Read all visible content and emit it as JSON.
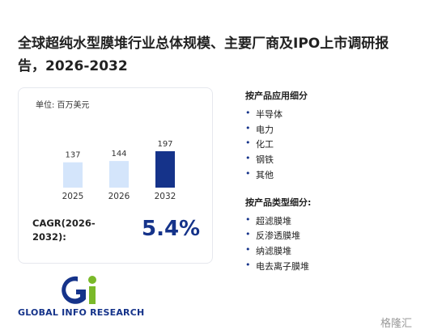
{
  "title": "全球超纯水型膜堆行业总体规模、主要厂商及IPO上市调研报告，2026-2032",
  "card": {
    "unit": "单位: 百万美元",
    "chart": {
      "type": "bar",
      "categories": [
        "2025",
        "2026",
        "2032"
      ],
      "values": [
        137,
        144,
        197
      ],
      "colors": [
        "#d4e5fb",
        "#d4e5fb",
        "#15338a"
      ]
    },
    "cagr_label": "CAGR(2026-2032):",
    "cagr_value": "5.4%"
  },
  "logo": "GLOBAL INFO RESEARCH",
  "sections": [
    {
      "heading": "按产品应用细分",
      "items": [
        "半导体",
        "电力",
        "化工",
        "钢铁",
        "其他"
      ]
    },
    {
      "heading": "按产品类型细分:",
      "items": [
        "超滤膜堆",
        "反渗透膜堆",
        "纳滤膜堆",
        "电去离子膜堆"
      ]
    }
  ],
  "watermark": "格隆汇"
}
